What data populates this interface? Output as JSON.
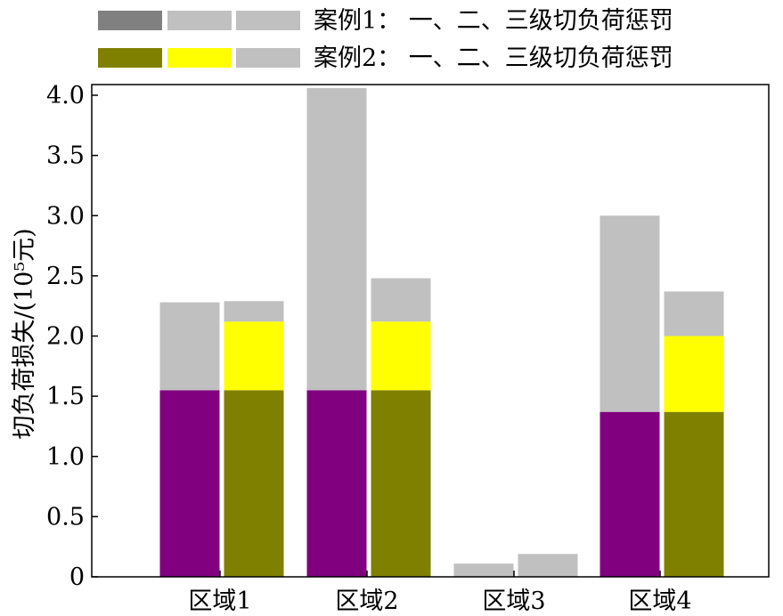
{
  "chart_data": {
    "type": "bar",
    "stacked": true,
    "grouped": true,
    "categories": [
      "区域1",
      "区域2",
      "区域3",
      "区域4"
    ],
    "ylabel": "切负荷损失/(10⁵元)",
    "ylim": [
      0,
      4.0
    ],
    "yticks": [
      "0",
      "0.5",
      "1.0",
      "1.5",
      "2.0",
      "2.5",
      "3.0",
      "3.5",
      "4.0"
    ],
    "legend_placement": "top",
    "legend": [
      {
        "label": "案例1：  一、二、三级切负荷惩罚",
        "colors": [
          "#808080",
          "#c0c0c0",
          "#c0c0c0"
        ]
      },
      {
        "label": "案例2：  一、二、三级切负荷惩罚",
        "colors": [
          "#808000",
          "#ffff00",
          "#c0c0c0"
        ]
      }
    ],
    "groups": [
      {
        "name": "案例1",
        "segments": [
          {
            "level": "一级",
            "color": "#800080",
            "values": [
              1.55,
              1.55,
              0.0,
              1.37
            ]
          },
          {
            "level": "二级",
            "color": "#c0c0c0",
            "values": [
              0.0,
              0.0,
              0.0,
              0.0
            ]
          },
          {
            "level": "三级",
            "color": "#c0c0c0",
            "values": [
              0.73,
              2.51,
              0.11,
              1.63
            ]
          }
        ]
      },
      {
        "name": "案例2",
        "segments": [
          {
            "level": "一级",
            "color": "#808000",
            "values": [
              1.55,
              1.55,
              0.0,
              1.37
            ]
          },
          {
            "level": "二级",
            "color": "#ffff00",
            "values": [
              0.57,
              0.57,
              0.0,
              0.63
            ]
          },
          {
            "level": "三级",
            "color": "#c0c0c0",
            "values": [
              0.17,
              0.36,
              0.19,
              0.37
            ]
          }
        ]
      }
    ]
  }
}
